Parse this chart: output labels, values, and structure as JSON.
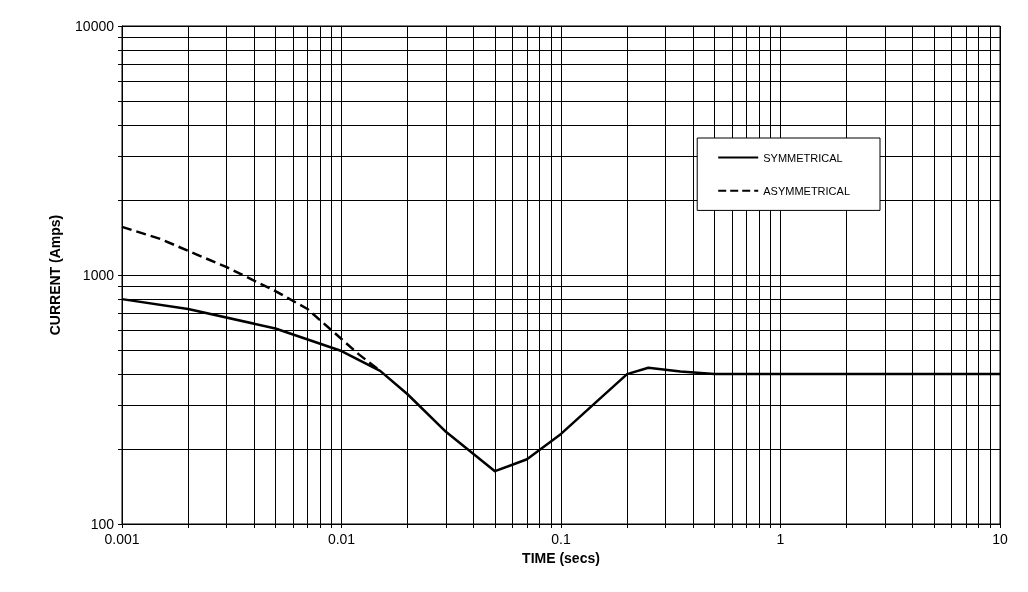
{
  "chart_data": {
    "type": "line",
    "xlabel": "TIME (secs)",
    "ylabel": "CURRENT (Amps)",
    "log": "xy",
    "grid": true,
    "legend": "top right",
    "xlim": [
      0.001,
      10
    ],
    "xticks": [
      0.001,
      0.01,
      0.1,
      1,
      10
    ],
    "ylim": [
      100,
      10000
    ],
    "yticks": [
      100,
      1000,
      10000
    ],
    "marker": "none",
    "series": [
      {
        "name": "SYMMETRICAL",
        "color": "#000000",
        "line_style": "solid",
        "x": [
          0.001,
          0.002,
          0.005,
          0.01,
          0.015,
          0.02,
          0.03,
          0.05,
          0.07,
          0.1,
          0.15,
          0.2,
          0.25,
          0.35,
          0.5,
          10
        ],
        "values": [
          800,
          730,
          610,
          495,
          412,
          332,
          234,
          163,
          182,
          230,
          318,
          400,
          424,
          410,
          400,
          400
        ]
      },
      {
        "name": "ASYMMETRICAL",
        "color": "#000000",
        "line_style": "dashed",
        "x": [
          0.001,
          0.0015,
          0.002,
          0.003,
          0.005,
          0.007,
          0.01,
          0.012,
          0.015
        ],
        "values": [
          1560,
          1395,
          1250,
          1075,
          862,
          730,
          553,
          480,
          412
        ]
      }
    ]
  }
}
